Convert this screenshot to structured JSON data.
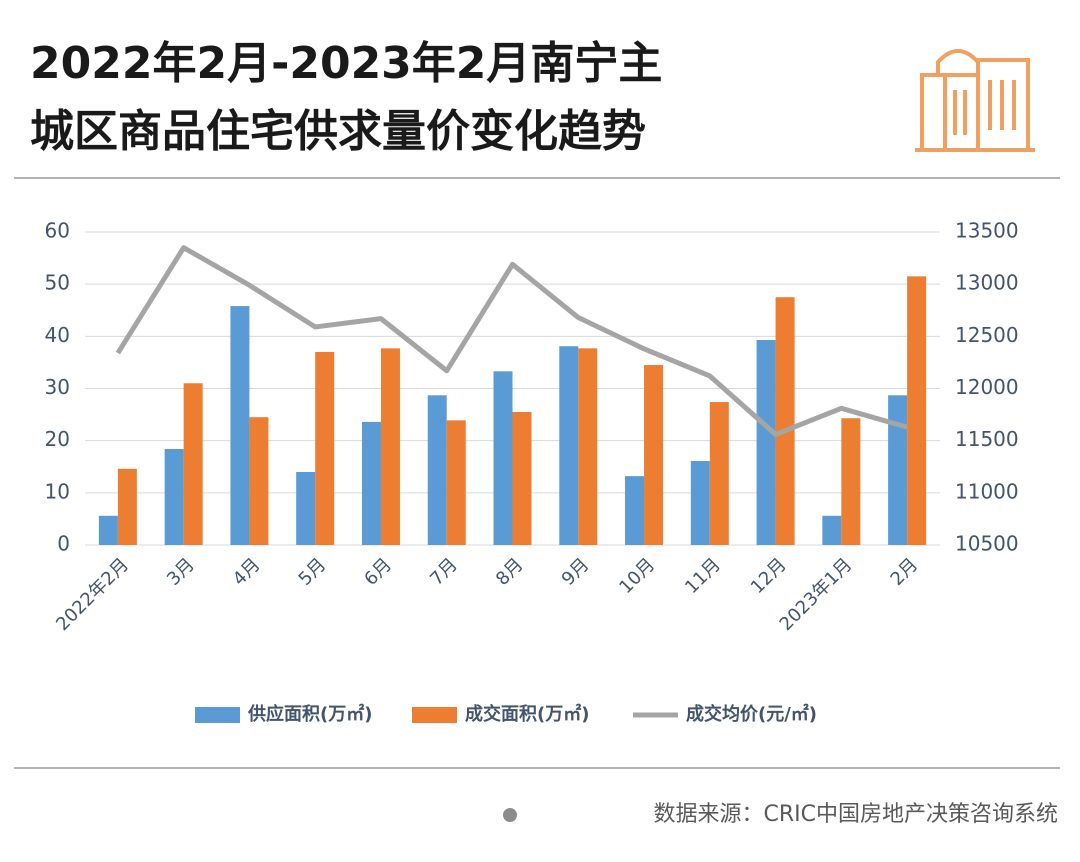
{
  "chart_data": {
    "type": "bar-line",
    "title": [
      "2022年2月-2023年2月南宁主",
      "城区商品住宅供求量价变化趋势"
    ],
    "categories": [
      "2022年2月",
      "3月",
      "4月",
      "5月",
      "6月",
      "7月",
      "8月",
      "9月",
      "10月",
      "11月",
      "12月",
      "2023年1月",
      "2月"
    ],
    "series": [
      {
        "name": "供应面积(万㎡)",
        "color": "#5b9bd5",
        "kind": "bar",
        "values": [
          5.6,
          18.4,
          45.8,
          14.0,
          23.6,
          28.7,
          33.3,
          38.1,
          13.2,
          16.1,
          39.3,
          5.6,
          28.7
        ]
      },
      {
        "name": "成交面积(万㎡)",
        "color": "#ed7d31",
        "kind": "bar",
        "values": [
          14.6,
          31.0,
          24.5,
          37.0,
          37.7,
          23.9,
          25.5,
          37.7,
          34.5,
          27.4,
          47.5,
          24.3,
          51.5
        ]
      },
      {
        "name": "成交均价(元/㎡)",
        "color": "#a5a5a5",
        "kind": "line",
        "axis": "y2",
        "values": [
          12340,
          13350,
          12990,
          12590,
          12670,
          12170,
          13190,
          12680,
          12380,
          12120,
          11560,
          11810,
          11630
        ]
      }
    ],
    "ylim": [
      0,
      60
    ],
    "yticks": [
      0,
      10,
      20,
      30,
      40,
      50,
      60
    ],
    "y2lim": [
      10500,
      13500
    ],
    "y2ticks": [
      10500,
      11000,
      11500,
      12000,
      12500,
      13000,
      13500
    ],
    "grid": true,
    "source": "数据来源：CRIC中国房地产决策咨询系统"
  }
}
